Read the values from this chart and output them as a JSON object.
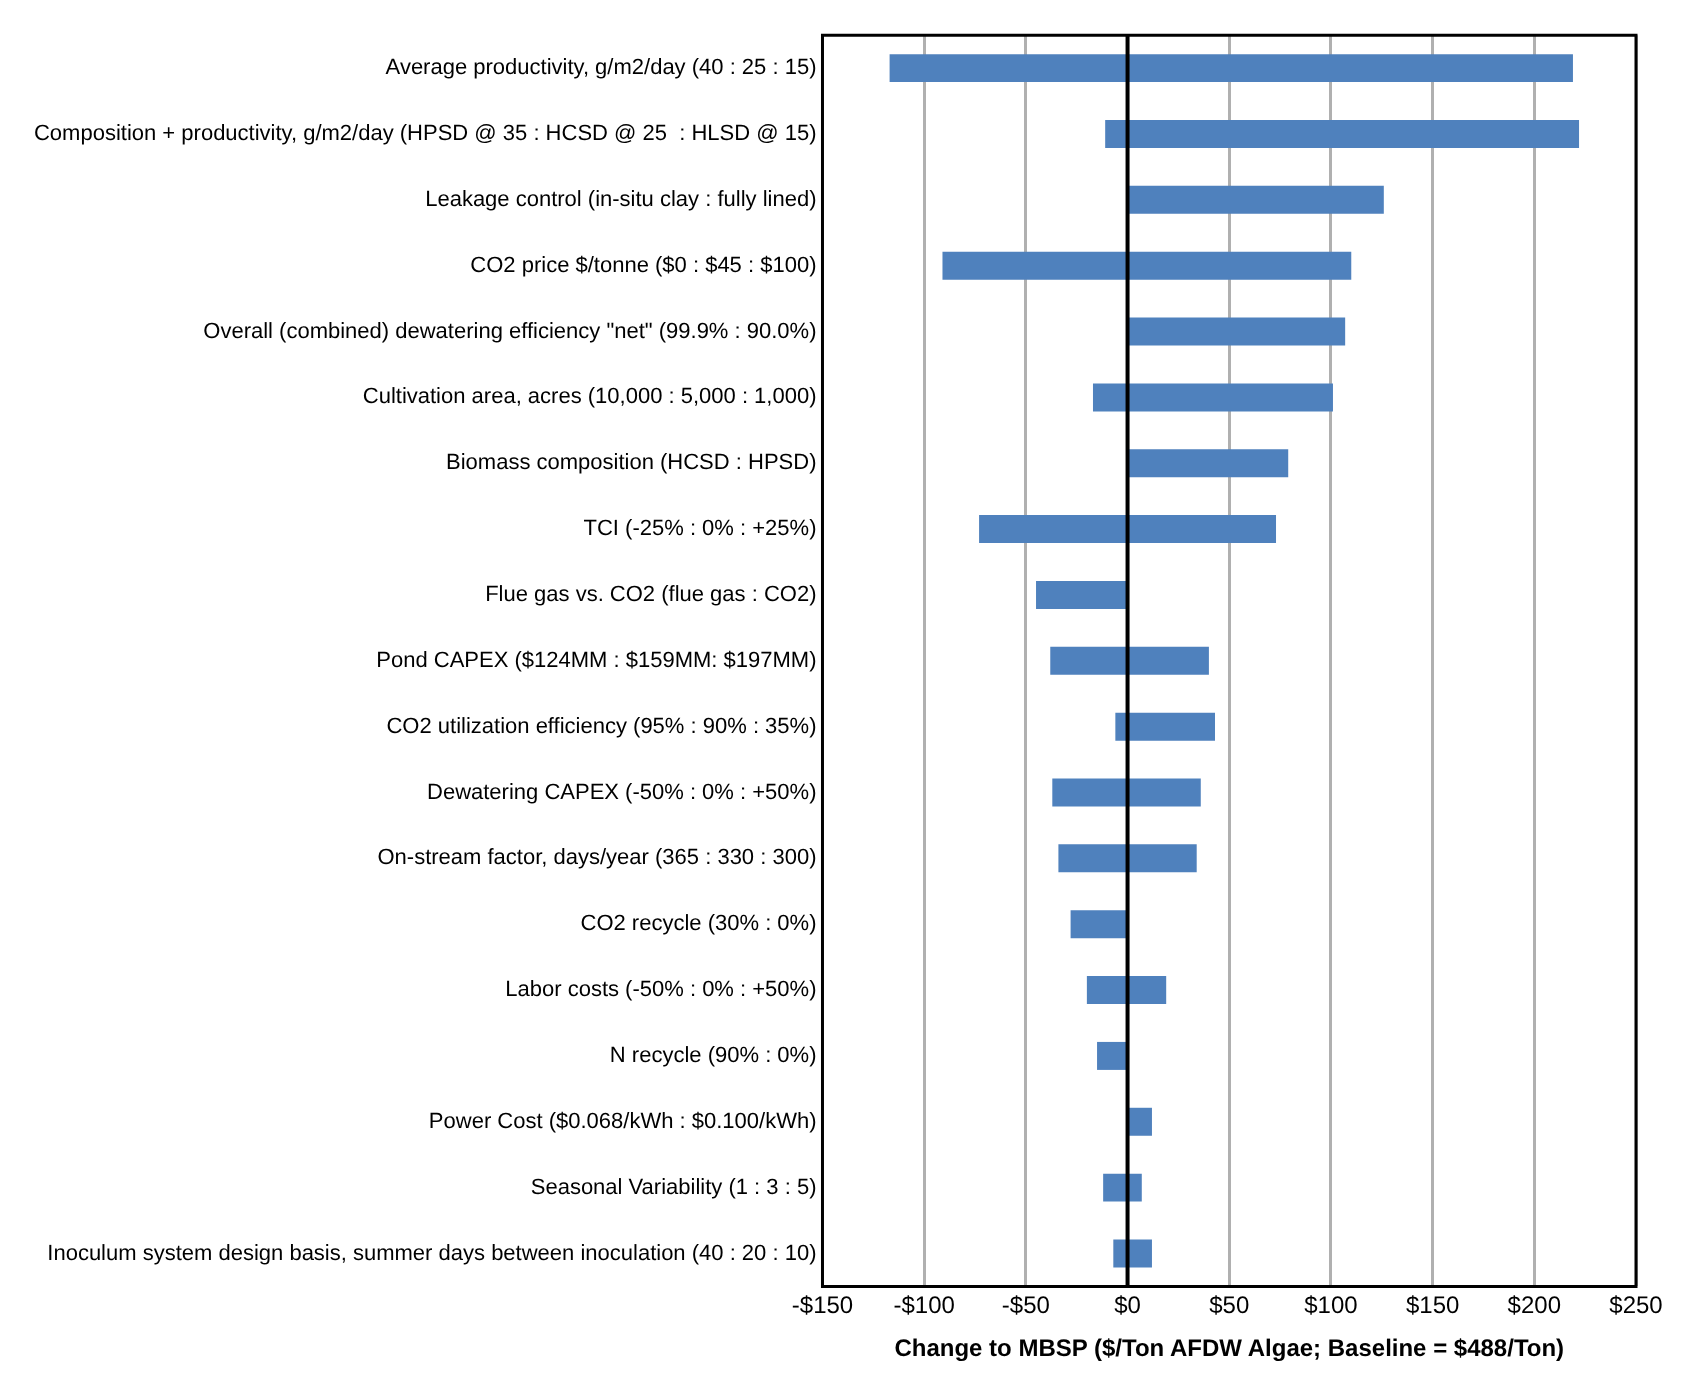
{
  "chart_data": {
    "type": "bar",
    "orientation": "horizontal",
    "categories": [
      "Average productivity, g/m2/day (40 : 25 : 15)",
      "Composition + productivity, g/m2/day (HPSD @ 35 : HCSD @ 25  : HLSD @ 15)",
      "Leakage control (in-situ clay : fully lined)",
      "CO2 price $/tonne ($0 : $45 : $100)",
      "Overall (combined) dewatering efficiency \"net\" (99.9% : 90.0%)",
      "Cultivation area, acres (10,000 : 5,000 : 1,000)",
      "Biomass composition (HCSD : HPSD)",
      "TCI (-25% : 0% : +25%)",
      "Flue gas vs. CO2 (flue gas : CO2)",
      "Pond CAPEX ($124MM : $159MM: $197MM)",
      "CO2 utilization efficiency (95% : 90% : 35%)",
      "Dewatering CAPEX (-50% : 0% : +50%)",
      "On-stream factor, days/year (365 : 330 : 300)",
      "CO2 recycle (30% : 0%)",
      "Labor costs (-50% : 0% : +50%)",
      "N recycle (90% : 0%)",
      "Power Cost ($0.068/kWh : $0.100/kWh)",
      "Seasonal Variability (1 : 3 : 5)",
      "Inoculum system design basis, summer days between inoculation (40 : 20 : 10)"
    ],
    "base": [
      -117,
      -11,
      0,
      -91,
      0,
      -17,
      0,
      -73,
      -45,
      -38,
      -6,
      -37,
      -34,
      -28,
      -20,
      -15,
      0,
      -12,
      -7
    ],
    "values": [
      336,
      233,
      126,
      201,
      107,
      118,
      79,
      146,
      45,
      78,
      49,
      73,
      68,
      28,
      39,
      15,
      12,
      19,
      19
    ],
    "color": "#4f81bd",
    "xlim": [
      -150,
      250
    ],
    "xticks": [
      {
        "value": -150,
        "label": "-$150"
      },
      {
        "value": -100,
        "label": "-$100"
      },
      {
        "value": -50,
        "label": "-$50"
      },
      {
        "value": 0,
        "label": "$0"
      },
      {
        "value": 50,
        "label": "$50"
      },
      {
        "value": 100,
        "label": "$100"
      },
      {
        "value": 150,
        "label": "$150"
      },
      {
        "value": 200,
        "label": "$200"
      },
      {
        "value": 250,
        "label": "$250"
      }
    ],
    "xlabel": "Change to MBSP ($/Ton AFDW Algae; Baseline = $488/Ton)",
    "ref_lines": [
      {
        "axis": "x",
        "value": 0,
        "color": "#000000"
      }
    ],
    "grid": "x",
    "legend": false
  }
}
